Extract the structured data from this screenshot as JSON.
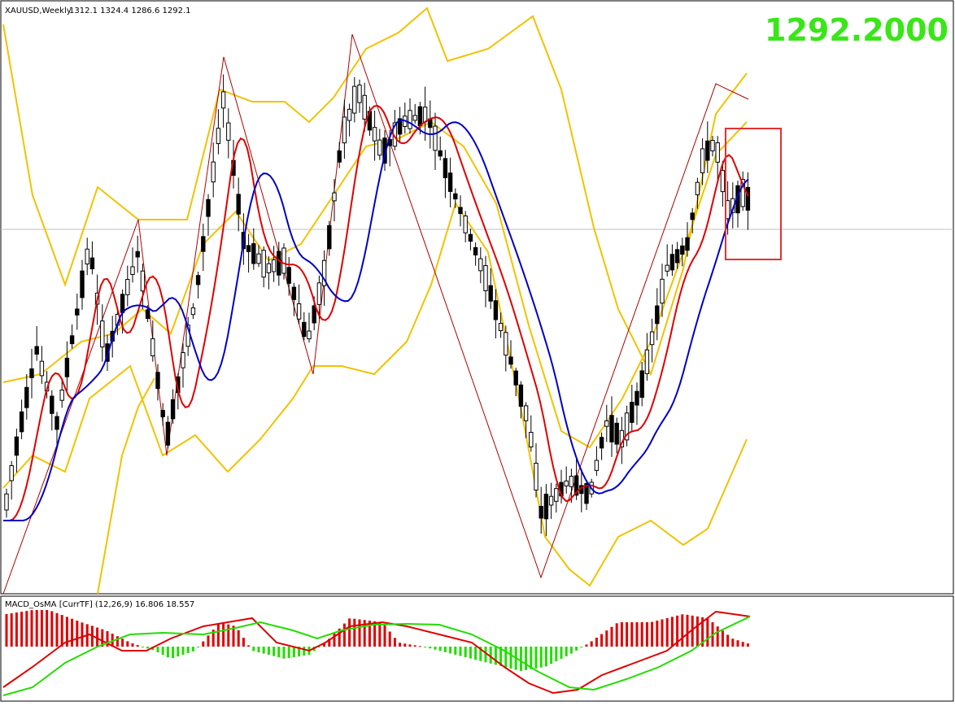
{
  "header": {
    "symbol": "XAUUSD,Weekly",
    "ohlc": "1312.1 1324.4 1286.6 1292.1",
    "price_big": "1292.2000"
  },
  "subwindow": {
    "label": "MACD_OsMA [CurrTF] (12,26,9) 16.806 18.557"
  },
  "colors": {
    "background": "#ffffff",
    "border": "#000000",
    "bollinger": "#f2c200",
    "ma_fast": "#e00000",
    "ma_slow": "#0000c8",
    "zigzag": "#b00000",
    "price_big": "#39e617",
    "highlight_box": "#e53030",
    "histogram_up": "#e00000",
    "histogram_down": "#22dd00",
    "macd_line": "#e00000",
    "signal_line": "#22dd00",
    "bid_line": "#c0c0c0"
  },
  "chart_data": [
    {
      "type": "candlestick",
      "panel": "main",
      "symbol": "XAUUSD",
      "timeframe": "Weekly",
      "last_bar": {
        "open": 1312.1,
        "high": 1324.4,
        "low": 1286.6,
        "close": 1292.1
      },
      "current_price": 1292.2,
      "approx_bar_count": 150,
      "note_series": [
        "Bollinger Bands (yellow)",
        "fast MA (red)",
        "slow MA (blue)",
        "ZigZag (dark red)"
      ]
    },
    {
      "type": "bar",
      "panel": "sub",
      "indicator": "MACD_OsMA [CurrTF]",
      "params": [
        12,
        26,
        9
      ],
      "values_shown": [
        16.806,
        18.557
      ]
    }
  ]
}
